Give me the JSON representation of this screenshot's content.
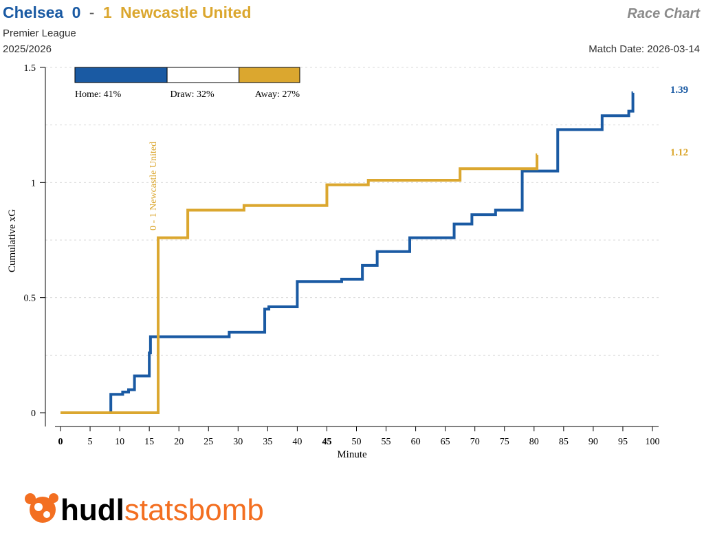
{
  "header": {
    "home_team": "Chelsea",
    "home_score": "0",
    "separator": "-",
    "away_score": "1",
    "away_team": "Newcastle United",
    "chart_label": "Race Chart",
    "competition": "Premier League",
    "season": "2025/2026",
    "match_date": "Match Date: 2026-03-14"
  },
  "colors": {
    "home": "#1a5aa3",
    "away": "#dba72f",
    "title_gray": "#8a8a8a",
    "grid": "#d9d9d9",
    "axis": "#000000"
  },
  "probability": {
    "home_label": "Home: 41%",
    "draw_label": "Draw: 32%",
    "away_label": "Away: 27%",
    "home": 0.41,
    "draw": 0.32,
    "away": 0.27
  },
  "branding": {
    "logo_text_bold": "hudl",
    "logo_text": "statsbomb",
    "logo_icon": "statsbomb-bomb-icon"
  },
  "chart_data": {
    "type": "line",
    "xlabel": "Minute",
    "ylabel": "Cumulative xG",
    "xlim": [
      0,
      100
    ],
    "ylim": [
      0,
      1.5
    ],
    "x_ticks": [
      0,
      5,
      10,
      15,
      20,
      25,
      30,
      35,
      40,
      45,
      50,
      55,
      60,
      65,
      70,
      75,
      80,
      85,
      90,
      95,
      100
    ],
    "x_tick_labels": [
      "0",
      "5",
      "10",
      "15",
      "20",
      "25",
      "30",
      "35",
      "40",
      "45",
      "50",
      "55",
      "60",
      "65",
      "70",
      "75",
      "80",
      "85",
      "90",
      "95",
      "100"
    ],
    "bold_x_ticks": [
      "0",
      "45"
    ],
    "y_ticks": [
      0,
      0.5,
      1,
      1.5
    ],
    "y_tick_labels": [
      "0",
      "0.5",
      "1",
      "1.5"
    ],
    "grid": true,
    "step": true,
    "series": [
      {
        "name": "Chelsea",
        "role": "home",
        "final_label": "1.39",
        "x": [
          0,
          8.5,
          10.5,
          11.5,
          12.5,
          15.0,
          15.2,
          28.5,
          34.5,
          35.2,
          40.0,
          47.5,
          51.0,
          53.5,
          59.0,
          66.5,
          69.5,
          73.5,
          78.0,
          84.0,
          91.5,
          96.0,
          96.7
        ],
        "y": [
          0,
          0.08,
          0.09,
          0.1,
          0.16,
          0.26,
          0.33,
          0.35,
          0.45,
          0.46,
          0.57,
          0.58,
          0.64,
          0.7,
          0.76,
          0.82,
          0.86,
          0.88,
          1.05,
          1.23,
          1.29,
          1.31,
          1.39
        ]
      },
      {
        "name": "Newcastle United",
        "role": "away",
        "final_label": "1.12",
        "x": [
          0,
          16.5,
          21.5,
          31.0,
          45.0,
          52.0,
          67.5,
          80.5
        ],
        "y": [
          0,
          0.76,
          0.88,
          0.9,
          0.99,
          1.01,
          1.06,
          1.12
        ]
      }
    ],
    "annotations": [
      {
        "text": "0 - 1 Newcastle United",
        "x": 16.5,
        "team": "away"
      }
    ]
  }
}
